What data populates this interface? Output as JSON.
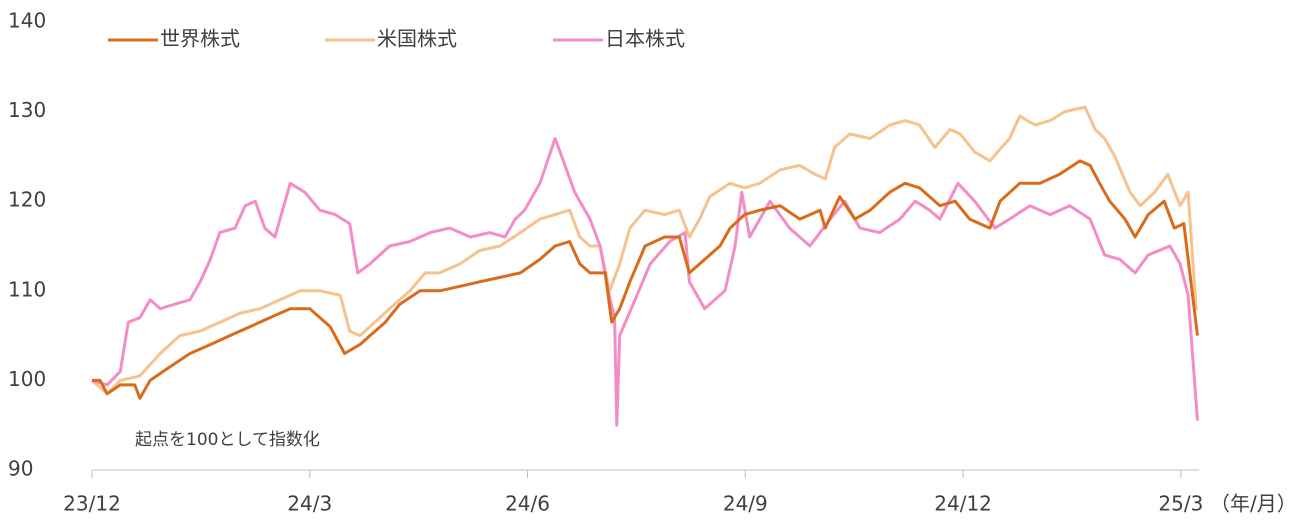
{
  "chart_data": {
    "type": "line",
    "annotation": "起点を100として指数化",
    "x_label": "（年/月）",
    "xlim": [
      0,
      15.25
    ],
    "xticks": [
      {
        "value": 0,
        "label": "23/12"
      },
      {
        "value": 3,
        "label": "24/3"
      },
      {
        "value": 6,
        "label": "24/6"
      },
      {
        "value": 9,
        "label": "24/9"
      },
      {
        "value": 12,
        "label": "24/12"
      },
      {
        "value": 15,
        "label": "25/3"
      }
    ],
    "ylim": [
      90,
      140
    ],
    "yticks": [
      90,
      100,
      110,
      120,
      130,
      140
    ],
    "grid": false,
    "legend": "top",
    "series": [
      {
        "name": "世界株式",
        "color": "#d96c1a",
        "x": [
          0,
          0.11,
          0.21,
          0.39,
          0.59,
          0.66,
          0.8,
          1.07,
          1.35,
          1.63,
          1.9,
          2.18,
          2.45,
          2.73,
          3.0,
          3.28,
          3.48,
          3.69,
          3.83,
          4.04,
          4.24,
          4.52,
          4.79,
          5.07,
          5.34,
          5.62,
          5.9,
          6.17,
          6.38,
          6.58,
          6.72,
          6.86,
          7.07,
          7.16,
          7.27,
          7.41,
          7.62,
          7.89,
          8.09,
          8.23,
          8.37,
          8.65,
          8.79,
          8.99,
          9.2,
          9.48,
          9.75,
          10.03,
          10.1,
          10.3,
          10.51,
          10.72,
          10.99,
          11.2,
          11.4,
          11.68,
          11.89,
          12.09,
          12.37,
          12.51,
          12.78,
          13.06,
          13.33,
          13.61,
          13.75,
          13.88,
          14.02,
          14.23,
          14.37,
          14.55,
          14.77,
          14.91,
          15.04,
          15.23
        ],
        "values": [
          100,
          100,
          98.5,
          99.5,
          99.5,
          98,
          100,
          101.5,
          103,
          104,
          105,
          106,
          107,
          108,
          108,
          106,
          103,
          104,
          105,
          106.5,
          108.5,
          110,
          110,
          110.5,
          111,
          111.5,
          112,
          113.5,
          115,
          115.5,
          113,
          112,
          112,
          106.5,
          108,
          111,
          115,
          116,
          116,
          112,
          113,
          115,
          117,
          118.5,
          119,
          119.5,
          118,
          119,
          117,
          120.5,
          118,
          119,
          121,
          122,
          121.5,
          119.5,
          120,
          118,
          117,
          120,
          122,
          122,
          123,
          124.5,
          124,
          122,
          120,
          118,
          116,
          118.5,
          120,
          117,
          117.5,
          105
        ]
      },
      {
        "name": "米国株式",
        "color": "#f6c28e",
        "x": [
          0,
          0.21,
          0.39,
          0.66,
          0.94,
          1.21,
          1.49,
          1.76,
          2.04,
          2.31,
          2.59,
          2.87,
          3.14,
          3.42,
          3.55,
          3.69,
          3.83,
          4.1,
          4.38,
          4.59,
          4.79,
          5.07,
          5.34,
          5.62,
          5.9,
          6.17,
          6.38,
          6.58,
          6.72,
          6.86,
          7.0,
          7.13,
          7.27,
          7.41,
          7.62,
          7.89,
          8.09,
          8.23,
          8.37,
          8.51,
          8.79,
          8.99,
          9.2,
          9.48,
          9.75,
          9.96,
          10.1,
          10.23,
          10.44,
          10.72,
          10.99,
          11.2,
          11.4,
          11.61,
          11.82,
          11.96,
          12.16,
          12.37,
          12.64,
          12.78,
          12.99,
          13.2,
          13.4,
          13.68,
          13.82,
          13.95,
          14.09,
          14.3,
          14.44,
          14.64,
          14.82,
          14.99,
          15.1,
          15.21,
          15.23
        ],
        "values": [
          100,
          98.5,
          100,
          100.5,
          103,
          105,
          105.5,
          106.5,
          107.5,
          108,
          109,
          110,
          110,
          109.5,
          105.5,
          105,
          106,
          108,
          110,
          112,
          112,
          113,
          114.5,
          115,
          116.5,
          118,
          118.5,
          119,
          116,
          115,
          115,
          110,
          113,
          117,
          119,
          118.5,
          119,
          116,
          118,
          120.5,
          122,
          121.5,
          122,
          123.5,
          124,
          123,
          122.5,
          126,
          127.5,
          127,
          128.5,
          129,
          128.5,
          126,
          128,
          127.5,
          125.5,
          124.5,
          127,
          129.5,
          128.5,
          129,
          130,
          130.5,
          128,
          127,
          125,
          121,
          119.5,
          121,
          123,
          119.5,
          121,
          108,
          108
        ]
      },
      {
        "name": "日本株式",
        "color": "#f48cc8",
        "x": [
          0,
          0.21,
          0.39,
          0.5,
          0.66,
          0.8,
          0.94,
          1.14,
          1.35,
          1.49,
          1.63,
          1.76,
          1.97,
          2.11,
          2.25,
          2.38,
          2.52,
          2.73,
          2.93,
          3.14,
          3.35,
          3.55,
          3.66,
          3.83,
          4.1,
          4.38,
          4.66,
          4.93,
          5.21,
          5.48,
          5.69,
          5.83,
          5.96,
          6.17,
          6.38,
          6.47,
          6.65,
          6.86,
          7.0,
          7.11,
          7.2,
          7.23,
          7.27,
          7.48,
          7.69,
          7.96,
          8.17,
          8.23,
          8.44,
          8.58,
          8.72,
          8.86,
          8.95,
          9.06,
          9.34,
          9.61,
          9.89,
          10.17,
          10.37,
          10.58,
          10.85,
          11.13,
          11.34,
          11.54,
          11.68,
          11.93,
          12.16,
          12.44,
          12.64,
          12.92,
          13.2,
          13.47,
          13.75,
          13.95,
          14.16,
          14.37,
          14.55,
          14.85,
          14.99,
          15.1,
          15.23
        ],
        "values": [
          100,
          99.5,
          101,
          106.5,
          107,
          109,
          108,
          108.5,
          109,
          111,
          113.5,
          116.5,
          117,
          119.5,
          120,
          117,
          116,
          122,
          121,
          119,
          118.5,
          117.5,
          112,
          113,
          115,
          115.5,
          116.5,
          117,
          116,
          116.5,
          116,
          118,
          119,
          122,
          127,
          125,
          121,
          118,
          115,
          110,
          107,
          95,
          105,
          109,
          113,
          115.5,
          116.5,
          111,
          108,
          109,
          110,
          115,
          121,
          116,
          120,
          117,
          115,
          118,
          120,
          117,
          116.5,
          118,
          120,
          119,
          118,
          122,
          120,
          117,
          118,
          119.5,
          118.5,
          119.5,
          118,
          114,
          113.5,
          112,
          114,
          115,
          113,
          109.5,
          95.5
        ]
      }
    ]
  }
}
